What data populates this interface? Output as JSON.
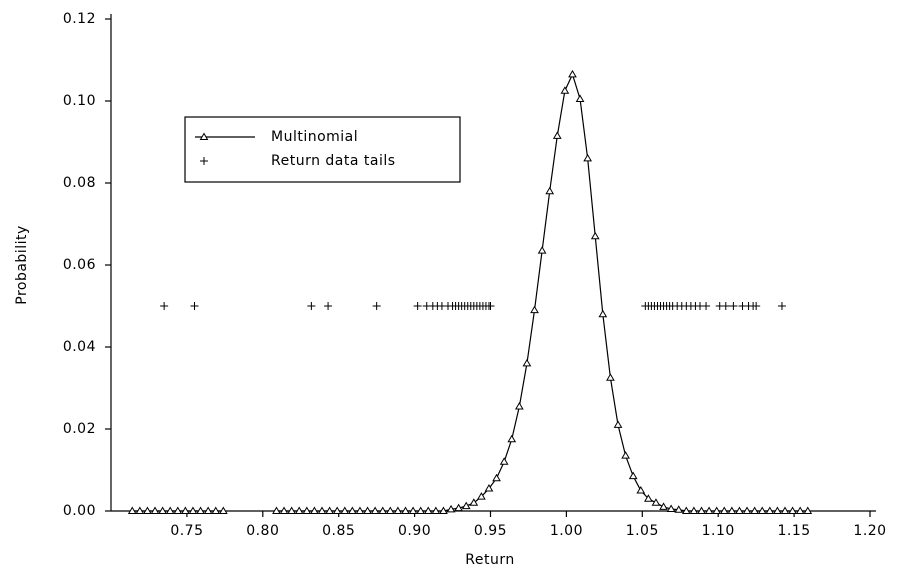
{
  "chart_data": {
    "type": "line",
    "x_label": "Return",
    "y_label": "Probability",
    "xlim": [
      0.7,
      1.2
    ],
    "ylim": [
      0,
      0.12
    ],
    "xticks": [
      0.75,
      {
        "value": 0.8,
        "label": "0.80"
      },
      0.85,
      {
        "value": 0.9,
        "label": "0.90"
      },
      0.95,
      {
        "value": 1.0,
        "label": "1.00"
      },
      1.05,
      {
        "value": 1.1,
        "label": "1.10"
      },
      1.15,
      {
        "value": 1.2,
        "label": "1.20"
      }
    ],
    "yticks": [
      {
        "value": 0,
        "label": "0.00"
      },
      0.02,
      0.04,
      0.06,
      0.08,
      {
        "value": 0.1,
        "label": "0.10"
      },
      0.12
    ],
    "legend": "upper left",
    "series": [
      {
        "name": "Multinomial",
        "color": "#000000",
        "marker": "triangle",
        "x": [
          0.714,
          0.719,
          0.724,
          0.729,
          0.734,
          0.739,
          0.744,
          0.749,
          0.754,
          0.759,
          0.764,
          0.769,
          0.774,
          0.79,
          0.809,
          0.814,
          0.819,
          0.824,
          0.829,
          0.834,
          0.839,
          0.844,
          0.849,
          0.854,
          0.859,
          0.864,
          0.869,
          0.874,
          0.879,
          0.884,
          0.889,
          0.894,
          0.899,
          0.904,
          0.909,
          0.914,
          0.919,
          0.924,
          0.929,
          0.934,
          0.939,
          0.944,
          0.949,
          0.954,
          0.959,
          0.964,
          0.969,
          0.974,
          0.979,
          0.984,
          0.989,
          0.994,
          0.999,
          1.004,
          1.009,
          1.014,
          1.019,
          1.024,
          1.029,
          1.034,
          1.039,
          1.044,
          1.049,
          1.054,
          1.059,
          1.064,
          1.069,
          1.074,
          1.079,
          1.084,
          1.089,
          1.094,
          1.099,
          1.104,
          1.109,
          1.114,
          1.119,
          1.124,
          1.129,
          1.134,
          1.139,
          1.144,
          1.149,
          1.154,
          1.159
        ],
        "values": [
          0,
          0,
          0,
          0,
          0,
          0,
          0,
          0,
          0,
          0,
          0,
          0,
          0,
          null,
          0,
          0,
          0,
          0,
          0,
          0,
          0,
          0,
          0,
          0,
          0,
          0,
          0,
          0,
          0,
          0,
          0,
          0,
          0,
          0,
          0,
          0,
          0,
          0.0004,
          0.0007,
          0.0012,
          0.002,
          0.0035,
          0.0055,
          0.008,
          0.012,
          0.0175,
          0.0255,
          0.036,
          0.049,
          0.0635,
          0.078,
          0.0915,
          0.1025,
          0.1065,
          0.1005,
          0.086,
          0.067,
          0.048,
          0.0325,
          0.021,
          0.0135,
          0.0085,
          0.005,
          0.003,
          0.002,
          0.001,
          0.0005,
          0.0003,
          0,
          0,
          0,
          0,
          0,
          0,
          0,
          0,
          0,
          0,
          0,
          0,
          0,
          0,
          0,
          0,
          0
        ]
      },
      {
        "name": "Return data tails",
        "color": "#000000",
        "marker": "plus",
        "x": [
          0.735,
          0.755,
          0.832,
          0.843,
          0.875,
          0.902,
          0.908,
          0.912,
          0.915,
          0.918,
          0.922,
          0.925,
          0.927,
          0.929,
          0.931,
          0.933,
          0.935,
          0.937,
          0.939,
          0.941,
          0.943,
          0.945,
          0.947,
          0.949,
          0.95,
          1.052,
          1.054,
          1.056,
          1.058,
          1.06,
          1.062,
          1.064,
          1.066,
          1.068,
          1.07,
          1.073,
          1.076,
          1.079,
          1.082,
          1.085,
          1.088,
          1.092,
          1.101,
          1.105,
          1.11,
          1.116,
          1.12,
          1.123,
          1.125,
          1.142
        ],
        "values": [
          0.05,
          0.05,
          0.05,
          0.05,
          0.05,
          0.05,
          0.05,
          0.05,
          0.05,
          0.05,
          0.05,
          0.05,
          0.05,
          0.05,
          0.05,
          0.05,
          0.05,
          0.05,
          0.05,
          0.05,
          0.05,
          0.05,
          0.05,
          0.05,
          0.05,
          0.05,
          0.05,
          0.05,
          0.05,
          0.05,
          0.05,
          0.05,
          0.05,
          0.05,
          0.05,
          0.05,
          0.05,
          0.05,
          0.05,
          0.05,
          0.05,
          0.05,
          0.05,
          0.05,
          0.05,
          0.05,
          0.05,
          0.05,
          0.05,
          0.05
        ]
      }
    ]
  }
}
